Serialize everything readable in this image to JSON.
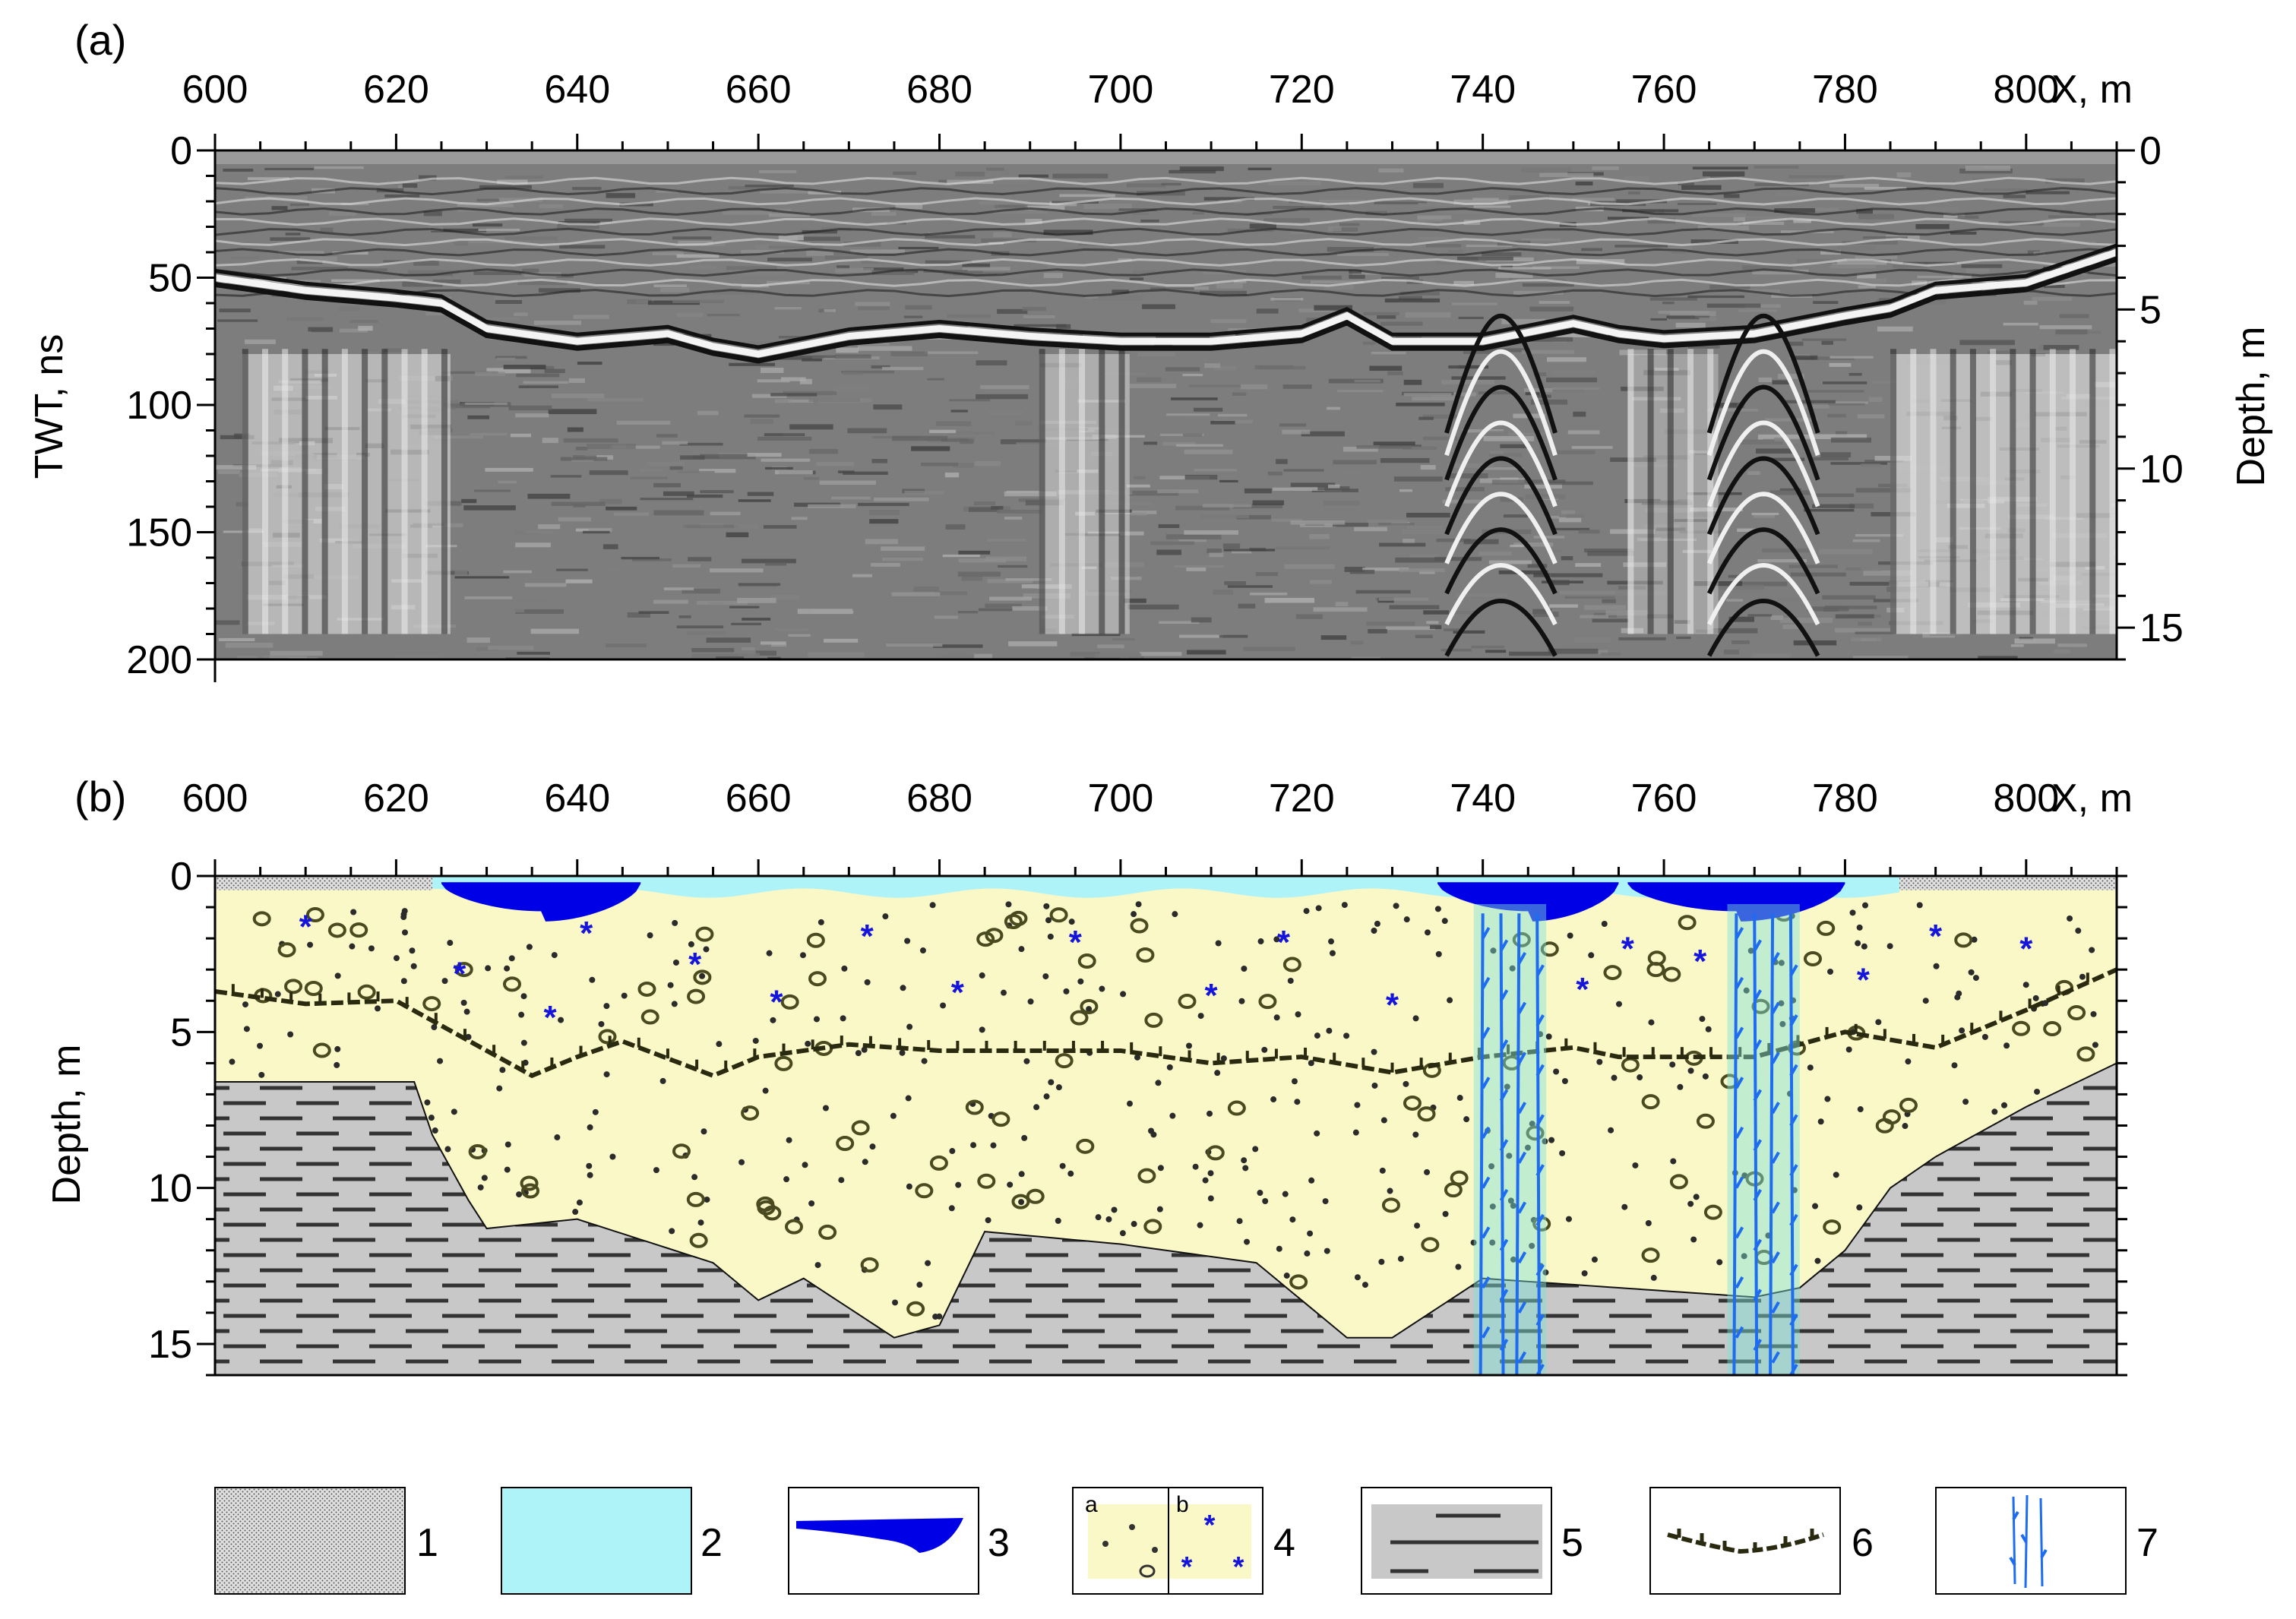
{
  "panel_a": {
    "label": "(a)",
    "x_axis_label": "X, m",
    "x_ticks": [
      "600",
      "620",
      "640",
      "660",
      "680",
      "700",
      "720",
      "740",
      "760",
      "780",
      "800"
    ],
    "y_left_label": "TWT, ns",
    "y_left_ticks": [
      "0",
      "50",
      "100",
      "150",
      "200"
    ],
    "y_right_label": "Depth, m",
    "y_right_ticks": [
      "0",
      "5",
      "10",
      "15"
    ]
  },
  "panel_b": {
    "label": "(b)",
    "x_axis_label": "X, m",
    "x_ticks": [
      "600",
      "620",
      "640",
      "660",
      "680",
      "700",
      "720",
      "740",
      "760",
      "780",
      "800"
    ],
    "y_label": "Depth, m",
    "y_ticks": [
      "0",
      "5",
      "10",
      "15"
    ]
  },
  "legend": {
    "items": [
      {
        "number": "1",
        "pattern": "stippled-fill",
        "color": "#d9d9d9"
      },
      {
        "number": "2",
        "pattern": "solid-fill",
        "color": "#aef3f8"
      },
      {
        "number": "3",
        "pattern": "blue-lens",
        "color": "#0000e6"
      },
      {
        "number": "4",
        "pattern": "dots-and-stars",
        "color": "#fbf8c8",
        "sub_a": "a",
        "sub_b": "b"
      },
      {
        "number": "5",
        "pattern": "gray-dashes",
        "color": "#c8c8c8"
      },
      {
        "number": "6",
        "pattern": "hatched-line",
        "color": "#2a2a10"
      },
      {
        "number": "7",
        "pattern": "blue-vertical-lines",
        "color": "#1e6cf0"
      }
    ]
  },
  "chart_data": {
    "type": "cross-section",
    "x_range": [
      600,
      810
    ],
    "panel_a": {
      "twt_range_ns": [
        0,
        200
      ],
      "depth_range_m": [
        0,
        16
      ],
      "main_reflector_twt_ns": [
        [
          600,
          50
        ],
        [
          610,
          55
        ],
        [
          620,
          58
        ],
        [
          625,
          60
        ],
        [
          630,
          70
        ],
        [
          640,
          75
        ],
        [
          650,
          72
        ],
        [
          655,
          77
        ],
        [
          660,
          80
        ],
        [
          670,
          73
        ],
        [
          680,
          70
        ],
        [
          690,
          73
        ],
        [
          700,
          75
        ],
        [
          710,
          75
        ],
        [
          720,
          72
        ],
        [
          725,
          65
        ],
        [
          730,
          75
        ],
        [
          740,
          75
        ],
        [
          750,
          68
        ],
        [
          755,
          72
        ],
        [
          760,
          74
        ],
        [
          770,
          72
        ],
        [
          780,
          65
        ],
        [
          785,
          62
        ],
        [
          790,
          55
        ],
        [
          800,
          52
        ],
        [
          810,
          40
        ]
      ],
      "hyperbola_x_m": [
        742,
        771
      ]
    },
    "panel_b": {
      "depth_range_m": [
        0,
        16
      ],
      "unit6_line_depth_m": [
        [
          600,
          3.7
        ],
        [
          610,
          4.1
        ],
        [
          620,
          4.0
        ],
        [
          630,
          5.6
        ],
        [
          635,
          6.4
        ],
        [
          640,
          5.8
        ],
        [
          645,
          5.3
        ],
        [
          655,
          6.4
        ],
        [
          660,
          5.8
        ],
        [
          670,
          5.4
        ],
        [
          680,
          5.6
        ],
        [
          690,
          5.6
        ],
        [
          700,
          5.6
        ],
        [
          710,
          6.0
        ],
        [
          720,
          5.8
        ],
        [
          730,
          6.3
        ],
        [
          740,
          5.8
        ],
        [
          750,
          5.5
        ],
        [
          755,
          5.8
        ],
        [
          760,
          5.8
        ],
        [
          770,
          5.8
        ],
        [
          780,
          5.0
        ],
        [
          790,
          5.5
        ],
        [
          800,
          4.3
        ],
        [
          810,
          3.0
        ]
      ],
      "unit5_top_depth_m": [
        [
          600,
          6.6
        ],
        [
          622,
          6.6
        ],
        [
          624,
          8.3
        ],
        [
          628,
          10.4
        ],
        [
          630,
          11.3
        ],
        [
          640,
          11.0
        ],
        [
          655,
          12.4
        ],
        [
          660,
          13.6
        ],
        [
          665,
          12.9
        ],
        [
          675,
          14.8
        ],
        [
          680,
          14.4
        ],
        [
          685,
          11.4
        ],
        [
          700,
          11.8
        ],
        [
          715,
          12.4
        ],
        [
          725,
          14.8
        ],
        [
          730,
          14.8
        ],
        [
          740,
          12.9
        ],
        [
          750,
          13.1
        ],
        [
          760,
          13.3
        ],
        [
          770,
          13.5
        ],
        [
          775,
          13.2
        ],
        [
          780,
          12.0
        ],
        [
          785,
          10.0
        ],
        [
          790,
          9.0
        ],
        [
          800,
          7.4
        ],
        [
          810,
          6.0
        ]
      ],
      "unit3_lenses_x_m": [
        [
          625,
          647
        ],
        [
          735,
          755
        ],
        [
          756,
          780
        ]
      ],
      "unit7_zones_x_m": [
        [
          739,
          747
        ],
        [
          767,
          775
        ]
      ]
    }
  }
}
